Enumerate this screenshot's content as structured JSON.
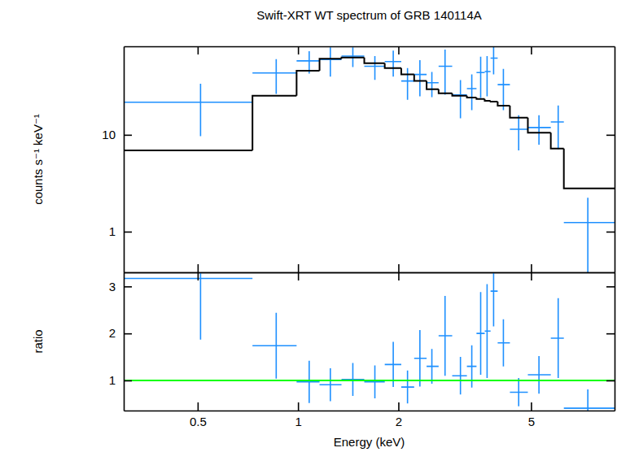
{
  "chart_data": [
    {
      "type": "scatter",
      "title": "Swift-XRT WT spectrum of GRB 140114A",
      "ylabel": "counts s⁻¹ keV⁻¹",
      "log": true,
      "tick_labels": "y",
      "xlim": [
        0.3,
        8.9
      ],
      "xticks": [
        0.5,
        1,
        2,
        5
      ],
      "ylim": [
        0.38,
        82
      ],
      "yticks": [
        1,
        10
      ],
      "x": [
        0.51,
        0.86,
        1.08,
        1.25,
        1.46,
        1.7,
        1.93,
        2.13,
        2.32,
        2.52,
        2.76,
        3.07,
        3.32,
        3.53,
        3.69,
        3.86,
        4.13,
        4.59,
        5.28,
        6.03,
        7.4
      ],
      "bins": [
        0.3,
        0.73,
        0.99,
        1.16,
        1.35,
        1.58,
        1.82,
        2.04,
        2.23,
        2.43,
        2.64,
        2.9,
        3.21,
        3.43,
        3.63,
        3.78,
        3.97,
        4.32,
        4.89,
        5.73,
        6.27,
        8.9
      ],
      "series": [
        {
          "type": "scatter",
          "marker": "cross",
          "color": "#1e90ff",
          "values": [
            21.7,
            43.5,
            58,
            60,
            65,
            51,
            57,
            36,
            42,
            34.5,
            51,
            25.8,
            30,
            44,
            45,
            62,
            33,
            11.4,
            11.9,
            13.6,
            1.24
          ],
          "errors": [
            12,
            17,
            15,
            20,
            15,
            14,
            17,
            13,
            17,
            10,
            25,
            11,
            12,
            20,
            20,
            20,
            15,
            4.5,
            4,
            6.5,
            1.0
          ]
        },
        {
          "type": "step",
          "color": "#000000",
          "values": [
            6.9,
            25.3,
            46,
            61,
            63,
            55,
            49,
            42,
            36,
            29.6,
            26.8,
            25.3,
            24.3,
            23.4,
            22.5,
            22,
            20,
            15,
            10.5,
            7.2,
            2.8
          ]
        }
      ]
    },
    {
      "type": "scatter",
      "ylabel": "ratio",
      "xlabel": "Energy (keV)",
      "log": "x",
      "xlim": [
        0.3,
        8.9
      ],
      "xticks": [
        0.5,
        1,
        2,
        5
      ],
      "ylim": [
        0.36,
        3.3
      ],
      "yticks": [
        1,
        2,
        3
      ],
      "x": [
        0.51,
        0.86,
        1.08,
        1.25,
        1.46,
        1.7,
        1.93,
        2.13,
        2.32,
        2.52,
        2.76,
        3.07,
        3.32,
        3.53,
        3.69,
        3.86,
        4.13,
        4.59,
        5.28,
        6.03,
        7.4
      ],
      "bins": [
        0.3,
        0.73,
        0.99,
        1.16,
        1.35,
        1.58,
        1.82,
        2.04,
        2.23,
        2.43,
        2.64,
        2.9,
        3.21,
        3.43,
        3.63,
        3.78,
        3.97,
        4.32,
        4.89,
        5.73,
        6.27,
        8.9
      ],
      "series": [
        {
          "type": "scatter",
          "marker": "cross",
          "color": "#1e90ff",
          "values": [
            3.17,
            1.74,
            0.97,
            0.91,
            1.02,
            0.97,
            1.34,
            0.86,
            1.47,
            1.3,
            1.95,
            1.1,
            1.3,
            2.0,
            2.05,
            2.9,
            1.8,
            0.75,
            1.12,
            1.9,
            0.41
          ],
          "errors": [
            1.3,
            0.7,
            0.45,
            0.35,
            0.35,
            0.35,
            0.48,
            0.35,
            0.6,
            0.37,
            0.85,
            0.4,
            0.45,
            0.88,
            1.0,
            0.75,
            0.5,
            0.3,
            0.4,
            0.85,
            0.4
          ]
        },
        {
          "type": "hline",
          "color": "#00ff00",
          "values": [
            1
          ]
        }
      ]
    }
  ]
}
